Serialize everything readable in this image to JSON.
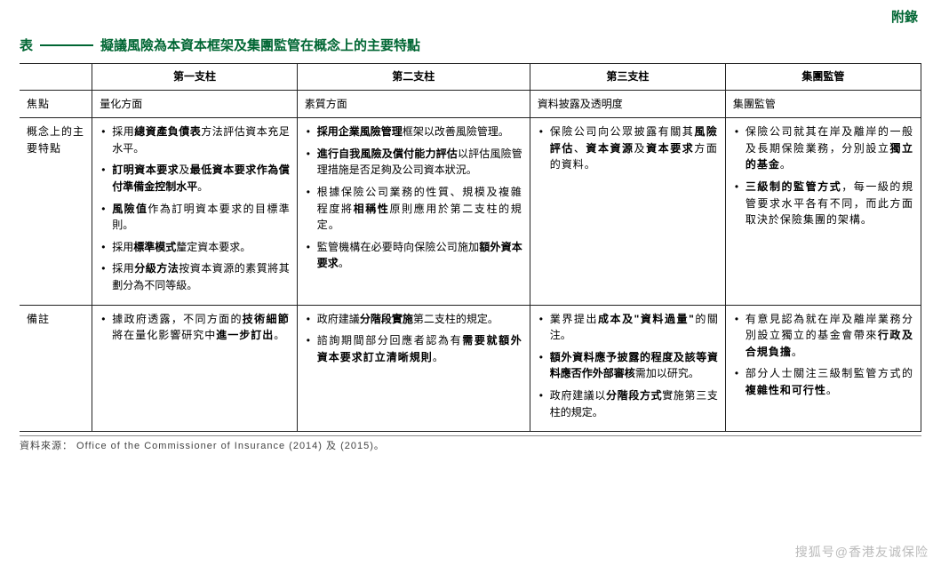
{
  "appendix_label": "附錄",
  "table_prefix": "表",
  "table_title": "擬議風險為本資本框架及集團監管在概念上的主要特點",
  "cols": {
    "blank": "",
    "p1": "第一支柱",
    "p2": "第二支柱",
    "p3": "第三支柱",
    "gs": "集團監管"
  },
  "rows": {
    "focus_label": "焦點",
    "focus": {
      "p1": "量化方面",
      "p2": "素質方面",
      "p3": "資料披露及透明度",
      "gs": "集團監管"
    },
    "concepts_label": "概念上的主要特點",
    "remarks_label": "備註"
  },
  "source": "資料來源： Office of the Commissioner of Insurance (2014) 及 (2015)。",
  "watermark_left": "搜狐号",
  "watermark_at": "@",
  "watermark_right": "香港友诚保险"
}
